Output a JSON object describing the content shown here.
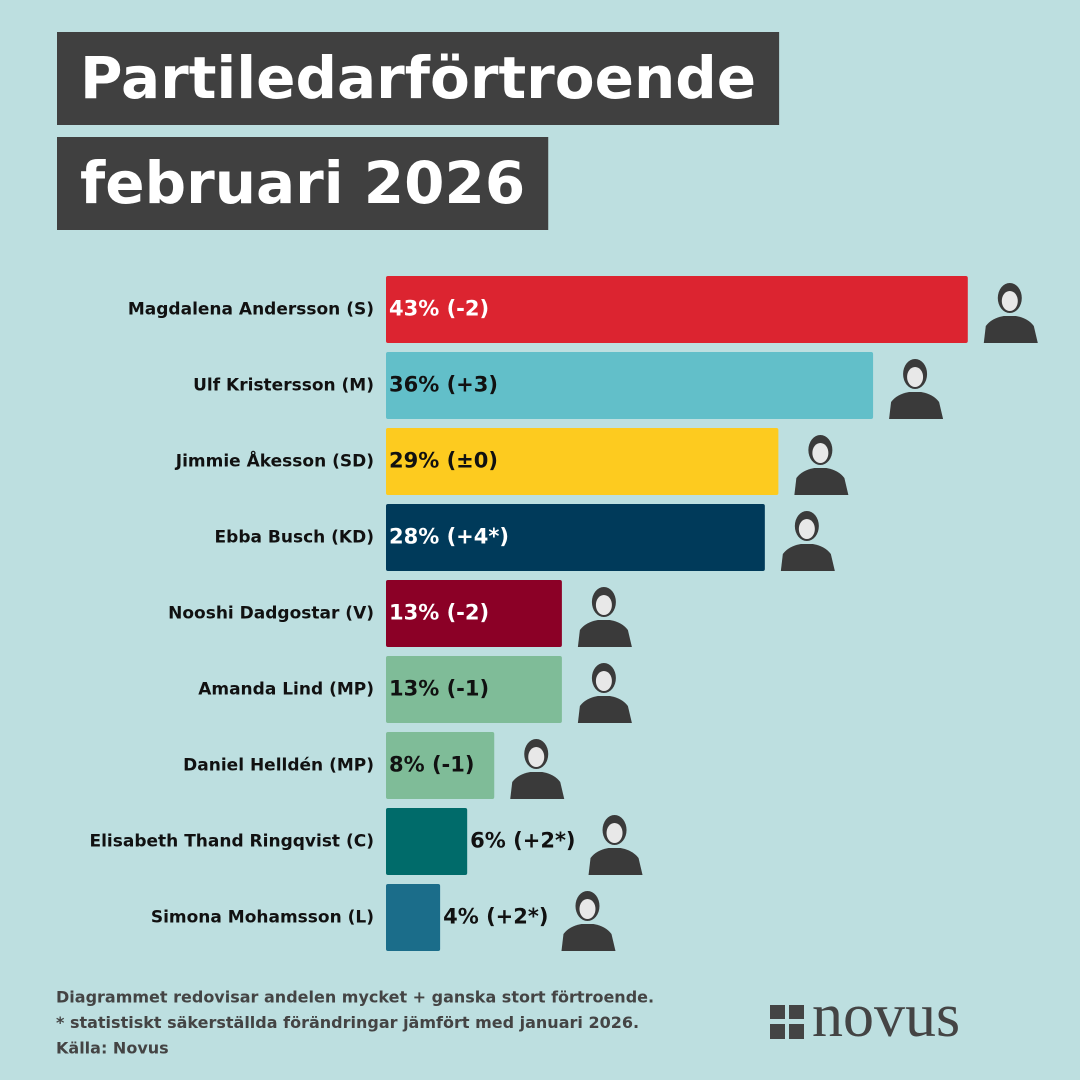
{
  "chart_data": {
    "type": "bar",
    "orientation": "horizontal",
    "title": [
      "Partiledarförtroende",
      "februari 2026"
    ],
    "categories": [
      "Magdalena Andersson (S)",
      "Ulf Kristersson (M)",
      "Jimmie Åkesson (SD)",
      "Ebba Busch (KD)",
      "Nooshi Dadgostar (V)",
      "Amanda Lind (MP)",
      "Daniel Helldén (MP)",
      "Elisabeth Thand Ringqvist (C)",
      "Simona Mohamsson (L)"
    ],
    "values": [
      43,
      36,
      29,
      28,
      13,
      13,
      8,
      6,
      4
    ],
    "value_labels": [
      "43% (-2)",
      "36% (+3)",
      "29% (±0)",
      "28% (+4*)",
      "13% (-2)",
      "13% (-1)",
      "8% (-1)",
      "6% (+2*)",
      "4% (+2*)"
    ],
    "colors": [
      "#dc2430",
      "#62bfc9",
      "#fdcb1f",
      "#003a5a",
      "#8b0026",
      "#7fbc98",
      "#7fbc98",
      "#006b6a",
      "#1b6d8a"
    ],
    "notes": [
      "Diagrammet redovisar andelen mycket + ganska stort förtroende.",
      "* statistiskt säkerställda förändringar jämfört med januari 2026.",
      "Källa: Novus"
    ],
    "logo": "novus"
  }
}
